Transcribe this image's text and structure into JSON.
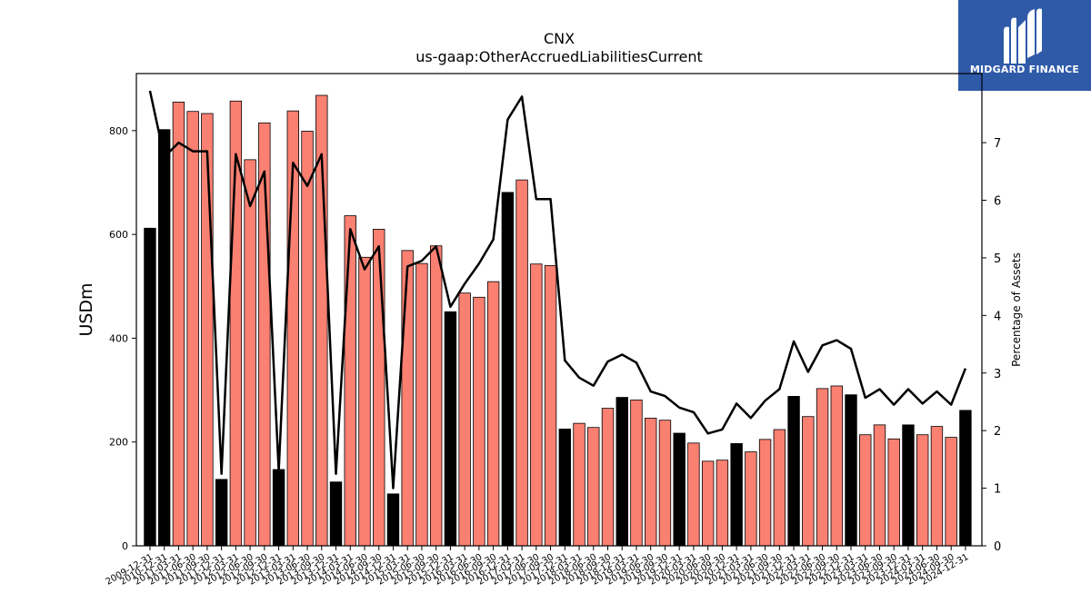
{
  "brand": {
    "name": "MIDGARD FINANCE",
    "color": "#2f5aa8"
  },
  "chart_data": {
    "type": "bar",
    "title": "CNX",
    "subtitle": "us-gaap:OtherAccruedLiabilitiesCurrent",
    "ylabel": "USDm",
    "y2label": "Percentage of Assets",
    "ylim": [
      0,
      910
    ],
    "y2lim": [
      0,
      8.2
    ],
    "yticks": [
      0,
      200,
      400,
      600,
      800
    ],
    "y2ticks": [
      0,
      1,
      2,
      3,
      4,
      5,
      6,
      7
    ],
    "colors": {
      "annual": "#000000",
      "quarterly": "#fa8072",
      "line": "#000000"
    },
    "categories": [
      "2009-12-31",
      "2010-12-31",
      "2011-03-31",
      "2011-06-30",
      "2011-09-30",
      "2011-12-31",
      "2012-03-31",
      "2012-06-30",
      "2012-09-30",
      "2012-12-31",
      "2013-03-31",
      "2013-06-30",
      "2013-09-30",
      "2013-12-31",
      "2014-03-31",
      "2014-06-30",
      "2014-09-30",
      "2014-12-31",
      "2015-03-31",
      "2015-06-30",
      "2015-09-30",
      "2015-12-31",
      "2016-03-31",
      "2016-06-30",
      "2016-09-30",
      "2016-12-31",
      "2017-03-31",
      "2017-06-30",
      "2017-09-30",
      "2017-12-31",
      "2018-03-31",
      "2018-06-30",
      "2018-09-30",
      "2018-12-31",
      "2019-03-31",
      "2019-06-30",
      "2019-09-30",
      "2019-12-31",
      "2020-03-31",
      "2020-06-30",
      "2020-09-30",
      "2020-12-31",
      "2021-03-31",
      "2021-06-30",
      "2021-09-30",
      "2021-12-31",
      "2022-03-31",
      "2022-06-30",
      "2022-09-30",
      "2022-12-31",
      "2023-03-31",
      "2023-06-30",
      "2023-09-30",
      "2023-12-31",
      "2024-03-31",
      "2024-06-30",
      "2024-09-30",
      "2024-12-31"
    ],
    "tick_labels": [
      "2009-12-31",
      "2010-12-31",
      "2011-03-31",
      "2011-06-30",
      "2011-09-30",
      "2011-12-31",
      "2012-03-31",
      "2012-06-30",
      "2012-09-30",
      "2012-12-31",
      "2013-03-31",
      "2013-06-30",
      "2013-09-30",
      "2013-12-31",
      "2014-03-31",
      "2014-06-30",
      "2014-09-30",
      "2014-12-31",
      "2015-03-31",
      "2015-06-30",
      "2015-09-30",
      "2015-12-31",
      "2016-03-31",
      "2016-06-30",
      "2016-09-30",
      "2016-12-31",
      "2017-03-31",
      "2017-06-30",
      "2017-09-30",
      "2017-12-31",
      "2018-03-31",
      "2018-06-30",
      "2018-09-30",
      "2018-12-31",
      "2019-03-31",
      "2019-06-30",
      "2019-09-30",
      "2019-12-31",
      "2020-03-31",
      "2020-06-30",
      "2020-09-30",
      "2020-12-31",
      "2021-03-31",
      "2021-06-30",
      "2021-09-30",
      "2021-12-31",
      "2022-03-31",
      "2022-06-30",
      "2022-09-30",
      "2022-12-31",
      "2023-03-31",
      "2023-06-30",
      "2023-09-30",
      "2023-12-31",
      "2024-03-31",
      "2024-06-30",
      "2024-09-30",
      "2024-12-31"
    ],
    "series": [
      {
        "axis": "left",
        "values": [
          612,
          802,
          855,
          837,
          833,
          128,
          857,
          744,
          815,
          147,
          838,
          799,
          868,
          123,
          636,
          556,
          610,
          100,
          569,
          544,
          578,
          451,
          487,
          479,
          509,
          681,
          705,
          543,
          540,
          225,
          236,
          228,
          265,
          286,
          281,
          246,
          242,
          217,
          198,
          163,
          165,
          197,
          181,
          205,
          224,
          288,
          249,
          303,
          308,
          291,
          214,
          233,
          206,
          233,
          214,
          230,
          209,
          261
        ],
        "annual": [
          true,
          true,
          false,
          false,
          false,
          true,
          false,
          false,
          false,
          true,
          false,
          false,
          false,
          true,
          false,
          false,
          false,
          true,
          false,
          false,
          false,
          true,
          false,
          false,
          false,
          true,
          false,
          false,
          false,
          true,
          false,
          false,
          false,
          true,
          false,
          false,
          false,
          true,
          false,
          false,
          false,
          true,
          false,
          false,
          false,
          true,
          false,
          false,
          false,
          true,
          false,
          false,
          false,
          true,
          false,
          false,
          false,
          true
        ]
      },
      {
        "axis": "right",
        "type": "line",
        "values": [
          7.9,
          6.75,
          7.0,
          6.85,
          6.85,
          1.25,
          6.8,
          5.9,
          6.5,
          1.3,
          6.65,
          6.25,
          6.8,
          1.25,
          5.5,
          4.8,
          5.2,
          1.0,
          4.85,
          4.95,
          5.2,
          4.15,
          4.55,
          4.9,
          5.32,
          7.4,
          7.8,
          6.02,
          6.02,
          3.22,
          2.92,
          2.78,
          3.2,
          3.32,
          3.18,
          2.68,
          2.6,
          2.4,
          2.32,
          1.95,
          2.02,
          2.47,
          2.22,
          2.52,
          2.72,
          3.55,
          3.02,
          3.48,
          3.57,
          3.42,
          2.57,
          2.72,
          2.45,
          2.72,
          2.47,
          2.68,
          2.45,
          3.08
        ]
      }
    ]
  }
}
